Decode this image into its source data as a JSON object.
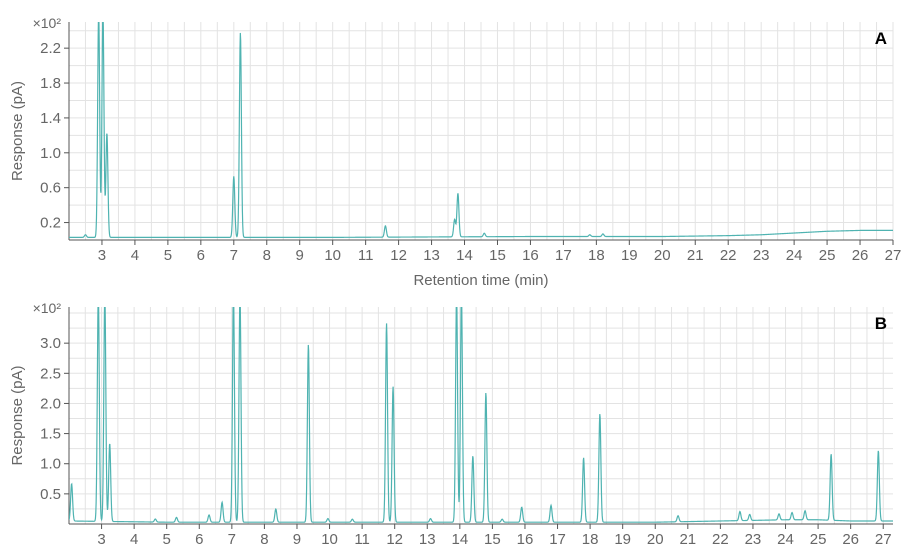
{
  "colors": {
    "trace": "#4fb3b1",
    "grid": "#e3e3e3",
    "axis": "#555555",
    "text": "#666666",
    "label": "#000000"
  },
  "chart_data": [
    {
      "type": "line",
      "panel_label": "A",
      "multiplier_label": "×10²",
      "xlabel": "Retention time (min)",
      "ylabel": "Response (pA)",
      "xlim": [
        2.0,
        27.0
      ],
      "ylim": [
        0.0,
        2.5
      ],
      "x_ticks": [
        3,
        4,
        5,
        6,
        7,
        8,
        9,
        10,
        11,
        12,
        13,
        14,
        15,
        16,
        17,
        18,
        19,
        20,
        21,
        22,
        23,
        24,
        25,
        26,
        27
      ],
      "y_ticks": [
        0.2,
        0.6,
        1.0,
        1.4,
        1.8,
        2.2
      ],
      "baseline": [
        [
          2.0,
          0.03
        ],
        [
          10.0,
          0.03
        ],
        [
          16.0,
          0.04
        ],
        [
          20.0,
          0.04
        ],
        [
          22.0,
          0.05
        ],
        [
          23.0,
          0.06
        ],
        [
          24.0,
          0.08
        ],
        [
          25.0,
          0.1
        ],
        [
          26.0,
          0.11
        ],
        [
          27.0,
          0.11
        ]
      ],
      "peaks": [
        {
          "x": 2.5,
          "h": 0.03
        },
        {
          "x": 2.9,
          "h": 2.6
        },
        {
          "x": 3.03,
          "h": 2.6
        },
        {
          "x": 3.15,
          "h": 1.2
        },
        {
          "x": 7.0,
          "h": 0.7
        },
        {
          "x": 7.2,
          "h": 2.35
        },
        {
          "x": 11.6,
          "h": 0.13
        },
        {
          "x": 13.7,
          "h": 0.2
        },
        {
          "x": 13.8,
          "h": 0.5
        },
        {
          "x": 14.6,
          "h": 0.04
        },
        {
          "x": 17.8,
          "h": 0.02
        },
        {
          "x": 18.2,
          "h": 0.03
        }
      ]
    },
    {
      "type": "line",
      "panel_label": "B",
      "multiplier_label": "×10²",
      "xlabel": "",
      "ylabel": "Response (pA)",
      "xlim": [
        2.0,
        27.3
      ],
      "ylim": [
        0.0,
        3.6
      ],
      "x_ticks": [
        3,
        4,
        5,
        6,
        7,
        8,
        9,
        10,
        11,
        12,
        13,
        14,
        15,
        16,
        17,
        18,
        19,
        20,
        21,
        22,
        23,
        24,
        25,
        26,
        27
      ],
      "y_ticks": [
        0.5,
        1.0,
        1.5,
        2.0,
        2.5,
        3.0
      ],
      "baseline": [
        [
          2.0,
          0.05
        ],
        [
          5.0,
          0.03
        ],
        [
          20.0,
          0.03
        ],
        [
          22.0,
          0.05
        ],
        [
          23.0,
          0.06
        ],
        [
          24.0,
          0.07
        ],
        [
          25.0,
          0.07
        ],
        [
          26.0,
          0.05
        ],
        [
          27.3,
          0.05
        ]
      ],
      "peaks": [
        {
          "x": 2.08,
          "h": 0.62
        },
        {
          "x": 2.9,
          "h": 3.8
        },
        {
          "x": 3.1,
          "h": 3.8
        },
        {
          "x": 3.25,
          "h": 1.3
        },
        {
          "x": 4.65,
          "h": 0.05
        },
        {
          "x": 5.3,
          "h": 0.08
        },
        {
          "x": 6.3,
          "h": 0.12
        },
        {
          "x": 6.7,
          "h": 0.33
        },
        {
          "x": 7.05,
          "h": 3.8
        },
        {
          "x": 7.25,
          "h": 3.8
        },
        {
          "x": 8.35,
          "h": 0.22
        },
        {
          "x": 9.35,
          "h": 2.95
        },
        {
          "x": 9.95,
          "h": 0.06
        },
        {
          "x": 10.7,
          "h": 0.05
        },
        {
          "x": 11.75,
          "h": 3.3
        },
        {
          "x": 11.95,
          "h": 2.25
        },
        {
          "x": 13.1,
          "h": 0.06
        },
        {
          "x": 13.9,
          "h": 3.8
        },
        {
          "x": 14.05,
          "h": 3.8
        },
        {
          "x": 14.4,
          "h": 1.1
        },
        {
          "x": 14.8,
          "h": 2.15
        },
        {
          "x": 15.3,
          "h": 0.05
        },
        {
          "x": 15.9,
          "h": 0.25
        },
        {
          "x": 16.8,
          "h": 0.28
        },
        {
          "x": 17.8,
          "h": 1.07
        },
        {
          "x": 18.3,
          "h": 1.8
        },
        {
          "x": 20.7,
          "h": 0.1
        },
        {
          "x": 22.6,
          "h": 0.15
        },
        {
          "x": 22.9,
          "h": 0.1
        },
        {
          "x": 23.8,
          "h": 0.1
        },
        {
          "x": 24.2,
          "h": 0.12
        },
        {
          "x": 24.6,
          "h": 0.15
        },
        {
          "x": 25.4,
          "h": 1.1
        },
        {
          "x": 26.85,
          "h": 1.17
        }
      ]
    }
  ]
}
